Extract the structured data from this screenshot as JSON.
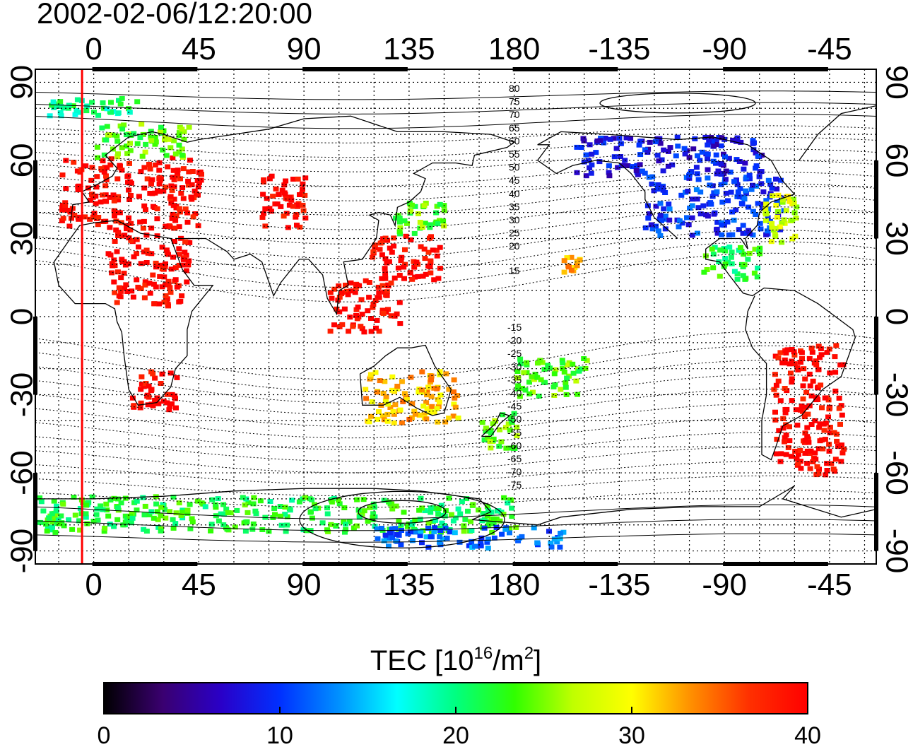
{
  "title": "2002-02-06/12:20:00",
  "colorbar_label_main": "TEC  [10",
  "colorbar_label_exp": "16",
  "colorbar_label_mid": "/m",
  "colorbar_label_exp2": "2",
  "colorbar_label_end": "]",
  "lon_ticks": [
    {
      "lon": 0,
      "label": "0"
    },
    {
      "lon": 45,
      "label": "45"
    },
    {
      "lon": 90,
      "label": "90"
    },
    {
      "lon": 135,
      "label": "135"
    },
    {
      "lon": 180,
      "label": "180"
    },
    {
      "lon": 225,
      "label": "-135"
    },
    {
      "lon": 270,
      "label": "-90"
    },
    {
      "lon": 315,
      "label": "-45"
    }
  ],
  "lat_ticks": [
    {
      "lat": 90,
      "label": "90"
    },
    {
      "lat": 60,
      "label": "60"
    },
    {
      "lat": 30,
      "label": "30"
    },
    {
      "lat": 0,
      "label": "0"
    },
    {
      "lat": -30,
      "label": "-30"
    },
    {
      "lat": -60,
      "label": "-60"
    },
    {
      "lat": -90,
      "label": "-90"
    }
  ],
  "contour_labels_north": [
    "80",
    "75",
    "70",
    "65",
    "60",
    "55",
    "50",
    "45",
    "40",
    "35",
    "30",
    "25",
    "20",
    "15"
  ],
  "contour_labels_south": [
    "-15",
    "-20",
    "-25",
    "-30",
    "-35",
    "-40",
    "-45",
    "-50",
    "-55",
    "-60",
    "-65",
    "-70",
    "-75"
  ],
  "colorbar_ticks": [
    {
      "value": 0,
      "label": "0"
    },
    {
      "value": 10,
      "label": "10"
    },
    {
      "value": 20,
      "label": "20"
    },
    {
      "value": 30,
      "label": "30"
    },
    {
      "value": 40,
      "label": "40"
    }
  ],
  "colorbar_range": [
    0,
    40
  ],
  "colorscale": [
    "#000000",
    "#3a0070",
    "#2a00c8",
    "#0030ff",
    "#0090ff",
    "#00ffff",
    "#00ff80",
    "#30ff00",
    "#c0ff00",
    "#ffff00",
    "#ff9000",
    "#ff3000",
    "#ff0000"
  ],
  "terminator_lon": -5,
  "terminator_color": "#ff0000",
  "map_lon_range": [
    -25,
    335
  ],
  "map_lat_range": [
    -95,
    95
  ],
  "tec_regions": [
    {
      "name": "europe",
      "lon": [
        -15,
        45
      ],
      "lat": [
        35,
        62
      ],
      "tec": 40
    },
    {
      "name": "northern-europe",
      "lon": [
        0,
        40
      ],
      "lat": [
        62,
        75
      ],
      "tec": 24
    },
    {
      "name": "arctic-norway",
      "lon": [
        -20,
        20
      ],
      "lat": [
        78,
        85
      ],
      "tec": 20
    },
    {
      "name": "central-asia",
      "lon": [
        70,
        90
      ],
      "lat": [
        35,
        55
      ],
      "tec": 40
    },
    {
      "name": "japan",
      "lon": [
        128,
        150
      ],
      "lat": [
        32,
        45
      ],
      "tec": 24
    },
    {
      "name": "china",
      "lon": [
        118,
        148
      ],
      "lat": [
        15,
        32
      ],
      "tec": 40
    },
    {
      "name": "se-asia",
      "lon": [
        100,
        130
      ],
      "lat": [
        -5,
        15
      ],
      "tec": 40
    },
    {
      "name": "north-america",
      "lon": [
        235,
        295
      ],
      "lat": [
        32,
        55
      ],
      "tec": 10
    },
    {
      "name": "canada",
      "lon": [
        205,
        285
      ],
      "lat": [
        55,
        70
      ],
      "tec": 8
    },
    {
      "name": "us-east-coast",
      "lon": [
        285,
        300
      ],
      "lat": [
        28,
        48
      ],
      "tec": 28
    },
    {
      "name": "central-america",
      "lon": [
        260,
        285
      ],
      "lat": [
        15,
        28
      ],
      "tec": 22
    },
    {
      "name": "south-america",
      "lon": [
        290,
        320
      ],
      "lat": [
        -60,
        -10
      ],
      "tec": 40
    },
    {
      "name": "africa-north",
      "lon": [
        5,
        40
      ],
      "lat": [
        5,
        35
      ],
      "tec": 40
    },
    {
      "name": "africa-south",
      "lon": [
        15,
        35
      ],
      "lat": [
        -35,
        -20
      ],
      "tec": 40
    },
    {
      "name": "australia",
      "lon": [
        115,
        155
      ],
      "lat": [
        -40,
        -20
      ],
      "tec": 32
    },
    {
      "name": "new-zealand",
      "lon": [
        165,
        180
      ],
      "lat": [
        -50,
        -35
      ],
      "tec": 24
    },
    {
      "name": "pacific-islands",
      "lon": [
        180,
        210
      ],
      "lat": [
        -30,
        -15
      ],
      "tec": 24
    },
    {
      "name": "hawaii",
      "lon": [
        200,
        208
      ],
      "lat": [
        18,
        24
      ],
      "tec": 32
    },
    {
      "name": "antarctica",
      "lon": [
        -25,
        180
      ],
      "lat": [
        -82,
        -68
      ],
      "tec": 22
    },
    {
      "name": "antarctica-east",
      "lon": [
        120,
        200
      ],
      "lat": [
        -88,
        -80
      ],
      "tec": 12
    }
  ]
}
